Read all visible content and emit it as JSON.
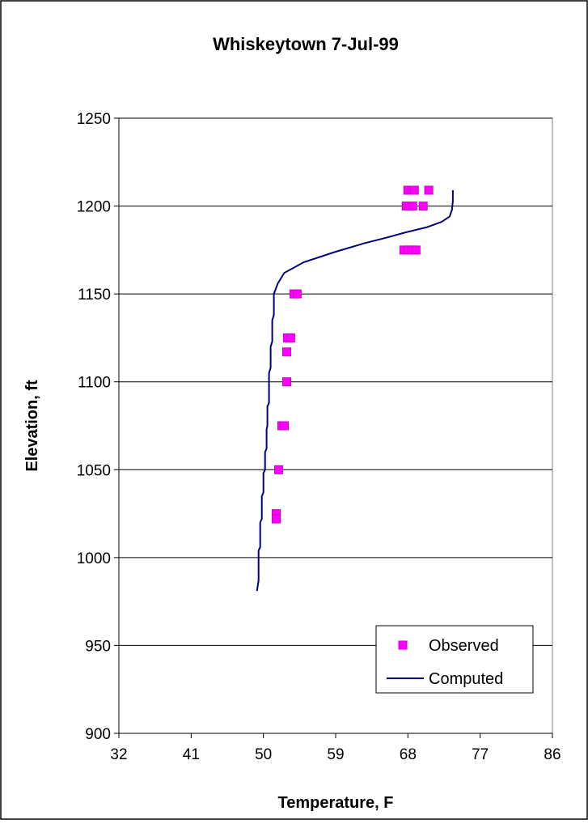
{
  "chart_data": {
    "type": "scatter",
    "title": "Whiskeytown 7-Jul-99",
    "xlabel": "Temperature, F",
    "ylabel": "Elevation, ft",
    "xlim": [
      32,
      86
    ],
    "ylim": [
      900,
      1250
    ],
    "xticks": [
      32,
      41,
      50,
      59,
      68,
      77,
      86
    ],
    "yticks": [
      900,
      950,
      1000,
      1050,
      1100,
      1150,
      1200,
      1250
    ],
    "grid": "horizontal major gridlines",
    "legend_position": "bottom-right",
    "series": [
      {
        "name": "Observed",
        "kind": "markers",
        "color": "#ff00ff",
        "marker": "square",
        "points": [
          {
            "x": 68.0,
            "y": 1209
          },
          {
            "x": 68.5,
            "y": 1209
          },
          {
            "x": 68.8,
            "y": 1209
          },
          {
            "x": 70.6,
            "y": 1209
          },
          {
            "x": 67.8,
            "y": 1200
          },
          {
            "x": 68.2,
            "y": 1200
          },
          {
            "x": 68.6,
            "y": 1200
          },
          {
            "x": 69.9,
            "y": 1200
          },
          {
            "x": 67.5,
            "y": 1175
          },
          {
            "x": 68.0,
            "y": 1175
          },
          {
            "x": 68.5,
            "y": 1175
          },
          {
            "x": 69.0,
            "y": 1175
          },
          {
            "x": 53.8,
            "y": 1150
          },
          {
            "x": 54.2,
            "y": 1150
          },
          {
            "x": 53.0,
            "y": 1125
          },
          {
            "x": 53.4,
            "y": 1125
          },
          {
            "x": 52.9,
            "y": 1117
          },
          {
            "x": 52.9,
            "y": 1100
          },
          {
            "x": 52.3,
            "y": 1075
          },
          {
            "x": 52.6,
            "y": 1075
          },
          {
            "x": 51.9,
            "y": 1050
          },
          {
            "x": 51.6,
            "y": 1025
          },
          {
            "x": 51.6,
            "y": 1022
          }
        ]
      },
      {
        "name": "Computed",
        "kind": "line",
        "color": "#000080",
        "points": [
          {
            "x": 49.2,
            "y": 981
          },
          {
            "x": 49.4,
            "y": 987
          },
          {
            "x": 49.4,
            "y": 1004
          },
          {
            "x": 49.6,
            "y": 1006
          },
          {
            "x": 49.6,
            "y": 1020
          },
          {
            "x": 49.8,
            "y": 1022
          },
          {
            "x": 49.8,
            "y": 1035
          },
          {
            "x": 50.0,
            "y": 1037
          },
          {
            "x": 50.0,
            "y": 1048
          },
          {
            "x": 50.2,
            "y": 1050
          },
          {
            "x": 50.2,
            "y": 1060
          },
          {
            "x": 50.4,
            "y": 1062
          },
          {
            "x": 50.4,
            "y": 1073
          },
          {
            "x": 50.5,
            "y": 1075
          },
          {
            "x": 50.5,
            "y": 1086
          },
          {
            "x": 50.7,
            "y": 1088
          },
          {
            "x": 50.7,
            "y": 1105
          },
          {
            "x": 50.9,
            "y": 1108
          },
          {
            "x": 50.9,
            "y": 1120
          },
          {
            "x": 51.1,
            "y": 1123
          },
          {
            "x": 51.1,
            "y": 1135
          },
          {
            "x": 51.3,
            "y": 1138
          },
          {
            "x": 51.3,
            "y": 1150
          },
          {
            "x": 51.8,
            "y": 1156
          },
          {
            "x": 52.6,
            "y": 1162
          },
          {
            "x": 55.0,
            "y": 1168
          },
          {
            "x": 59.0,
            "y": 1174
          },
          {
            "x": 62.7,
            "y": 1179
          },
          {
            "x": 65.3,
            "y": 1182
          },
          {
            "x": 67.7,
            "y": 1185
          },
          {
            "x": 70.4,
            "y": 1188
          },
          {
            "x": 72.2,
            "y": 1191
          },
          {
            "x": 73.2,
            "y": 1194
          },
          {
            "x": 73.5,
            "y": 1198
          },
          {
            "x": 73.6,
            "y": 1203
          },
          {
            "x": 73.6,
            "y": 1209
          }
        ]
      }
    ]
  }
}
